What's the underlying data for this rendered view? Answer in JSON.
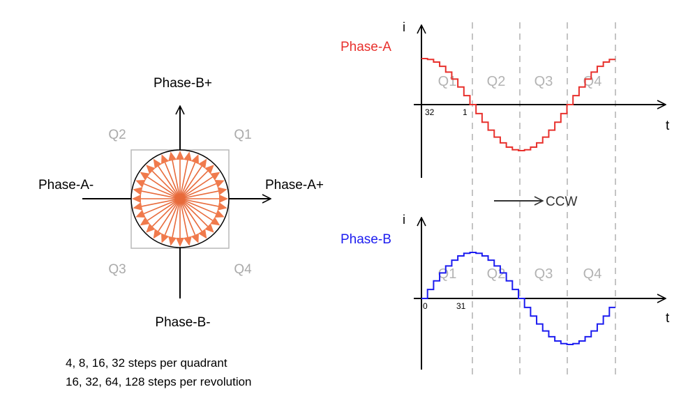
{
  "colors": {
    "phase_a": "#e8302c",
    "phase_b": "#1c1cf0",
    "vector_fill": "#f07a4c",
    "vector_stroke": "#e86a3a",
    "quadrant_text": "#aaaaaa",
    "dash_line": "#b0b0b0",
    "box": "#b8b8b8"
  },
  "phasor": {
    "labels": {
      "b_plus": "Phase-B+",
      "b_minus": "Phase-B-",
      "a_plus": "Phase-A+",
      "a_minus": "Phase-A-"
    },
    "quadrants": [
      "Q1",
      "Q2",
      "Q3",
      "Q4"
    ],
    "steps_per_revolution": 32
  },
  "notes": [
    "4, 8, 16, 32 steps per quadrant",
    "16, 32, 64, 128 steps per revolution"
  ],
  "direction": "CCW",
  "waveforms": [
    {
      "name": "Phase-A",
      "function": "cos",
      "y_axis_label": "i",
      "x_axis_label": "t",
      "quadrants": [
        "Q1",
        "Q2",
        "Q3",
        "Q4"
      ],
      "tick_labels": [
        "32",
        "1"
      ]
    },
    {
      "name": "Phase-B",
      "function": "sin",
      "y_axis_label": "i",
      "x_axis_label": "t",
      "quadrants": [
        "Q1",
        "Q2",
        "Q3",
        "Q4"
      ],
      "tick_labels": [
        "0",
        "31"
      ]
    }
  ]
}
